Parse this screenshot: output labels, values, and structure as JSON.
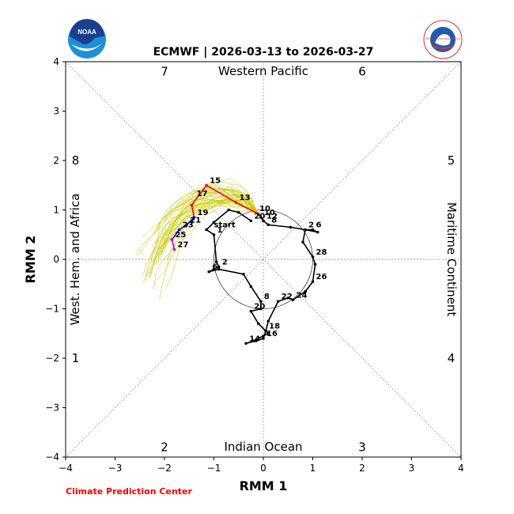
{
  "chart_data": {
    "type": "line",
    "title": "ECMWF | 2026-03-13 to 2026-03-27",
    "xlabel": "RMM 1",
    "ylabel": "RMM 2",
    "xlim": [
      -4,
      4
    ],
    "ylim": [
      -4,
      4
    ],
    "xticks": [
      -4,
      -3,
      -2,
      -1,
      0,
      1,
      2,
      3,
      4
    ],
    "yticks": [
      -4,
      -3,
      -2,
      -1,
      0,
      1,
      2,
      3,
      4
    ],
    "unit_circle_radius": 1,
    "regions": {
      "top": "Western Pacific",
      "bottom": "Indian Ocean",
      "left": "West. Hem. and Africa",
      "right": "Maritime Continent"
    },
    "phases": [
      {
        "label": "1",
        "x": -3.8,
        "y": -2.0
      },
      {
        "label": "2",
        "x": -2.0,
        "y": -3.8
      },
      {
        "label": "3",
        "x": 2.0,
        "y": -3.8
      },
      {
        "label": "4",
        "x": 3.8,
        "y": -2.0
      },
      {
        "label": "5",
        "x": 3.8,
        "y": 2.0
      },
      {
        "label": "6",
        "x": 2.0,
        "y": 3.8
      },
      {
        "label": "7",
        "x": -2.0,
        "y": 3.8
      },
      {
        "label": "8",
        "x": -3.8,
        "y": 2.0
      }
    ],
    "observed_series": {
      "color": "#000000",
      "points": [
        [
          -0.25,
          0.78,
          "20"
        ],
        [
          -0.5,
          0.95,
          ""
        ],
        [
          -0.7,
          1.0,
          ""
        ],
        [
          -1.0,
          0.75,
          ""
        ],
        [
          -1.15,
          0.6,
          ""
        ],
        [
          -1.0,
          0.5,
          "1"
        ],
        [
          -0.95,
          -0.05,
          ""
        ],
        [
          -0.9,
          -0.15,
          "2"
        ],
        [
          -1.0,
          -0.2,
          ""
        ],
        [
          -1.1,
          -0.25,
          "6"
        ],
        [
          -0.9,
          -0.2,
          ""
        ],
        [
          -0.4,
          -0.3,
          ""
        ],
        [
          -0.25,
          -0.55,
          ""
        ],
        [
          -0.05,
          -0.85,
          "8"
        ],
        [
          -0.05,
          -1.0,
          ""
        ],
        [
          -0.25,
          -1.05,
          "20"
        ],
        [
          -0.1,
          -1.3,
          ""
        ],
        [
          0.05,
          -1.45,
          "18"
        ],
        [
          0.0,
          -1.6,
          "16"
        ],
        [
          -0.15,
          -1.65,
          ""
        ],
        [
          -0.35,
          -1.7,
          "14"
        ],
        [
          -0.2,
          -1.65,
          ""
        ],
        [
          0.0,
          -1.55,
          ""
        ],
        [
          0.1,
          -1.5,
          ""
        ],
        [
          0.05,
          -1.45,
          ""
        ],
        [
          0.1,
          -1.25,
          ""
        ],
        [
          0.3,
          -0.85,
          "22"
        ],
        [
          0.5,
          -0.78,
          ""
        ],
        [
          0.6,
          -0.82,
          "24"
        ],
        [
          0.85,
          -0.65,
          ""
        ],
        [
          1.0,
          -0.45,
          "26"
        ],
        [
          1.05,
          -0.1,
          ""
        ],
        [
          1.0,
          0.05,
          "28"
        ],
        [
          0.8,
          0.35,
          ""
        ],
        [
          0.85,
          0.6,
          "2"
        ],
        [
          1.1,
          0.55,
          ""
        ],
        [
          1.0,
          0.6,
          "6"
        ],
        [
          0.85,
          0.6,
          ""
        ],
        [
          0.55,
          0.65,
          ""
        ],
        [
          0.1,
          0.7,
          "8"
        ],
        [
          0.0,
          0.78,
          "12"
        ],
        [
          -0.05,
          0.85,
          "10"
        ],
        [
          -0.1,
          0.92,
          ""
        ]
      ]
    },
    "forecast_series": [
      {
        "color": "#ff0000",
        "points": [
          [
            -0.1,
            0.92,
            ""
          ],
          [
            -0.55,
            1.15,
            "13"
          ],
          [
            -1.15,
            1.5,
            "15"
          ],
          [
            -1.45,
            1.1,
            ""
          ],
          [
            -1.4,
            0.85,
            "19"
          ]
        ]
      },
      {
        "color": "#0000ff",
        "points": [
          [
            -1.4,
            0.85,
            ""
          ],
          [
            -1.55,
            0.7,
            "21"
          ],
          [
            -1.7,
            0.6,
            "23"
          ],
          [
            -1.85,
            0.4,
            ""
          ]
        ]
      },
      {
        "color": "#cc00cc",
        "points": [
          [
            -1.85,
            0.4,
            "25"
          ],
          [
            -1.8,
            0.2,
            "27"
          ]
        ]
      }
    ],
    "forecast_labels": [
      {
        "text": "start",
        "x": -1.0,
        "y": 0.65
      },
      {
        "text": "17",
        "x": -1.35,
        "y": 1.28
      },
      {
        "text": "10",
        "x": -0.08,
        "y": 0.98
      }
    ],
    "ensemble_color": "#c8c800"
  },
  "credit": "Climate Prediction Center",
  "logos": {
    "noaa": "NOAA",
    "nws": "NATIONAL WEATHER SERVICE"
  }
}
